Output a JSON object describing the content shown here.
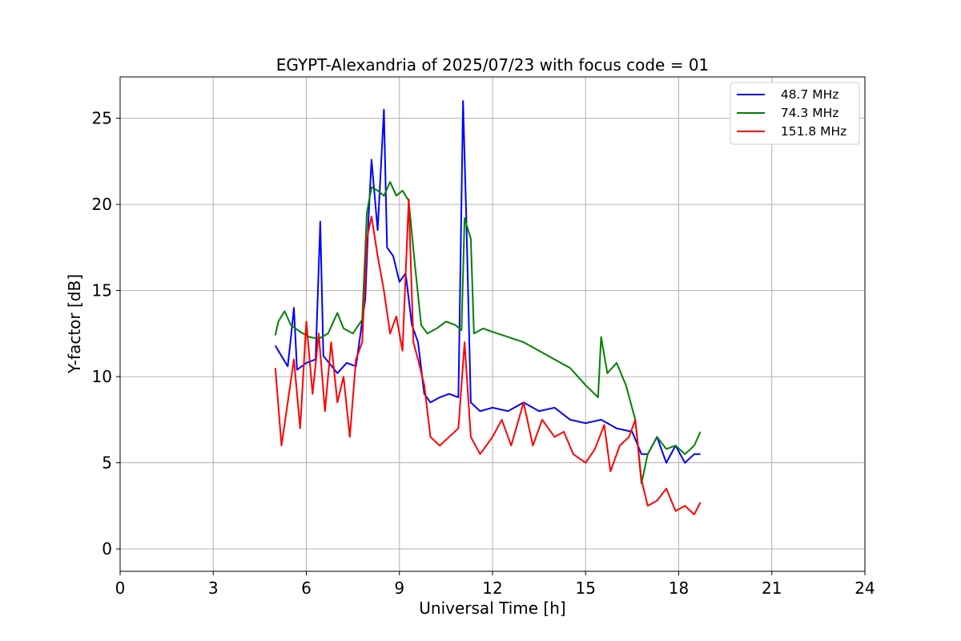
{
  "chart_data": {
    "type": "line",
    "title": "EGYPT-Alexandria of 2025/07/23 with focus code = 01",
    "xlabel": "Universal Time [h]",
    "ylabel": "Y-factor [dB]",
    "xlim": [
      0,
      24
    ],
    "ylim": [
      -1.3,
      27.4
    ],
    "xticks": [
      0,
      3,
      6,
      9,
      12,
      15,
      18,
      21,
      24
    ],
    "yticks": [
      0,
      5,
      10,
      15,
      20,
      25
    ],
    "grid": true,
    "legend_position": "top-right",
    "series": [
      {
        "name": "  48.7 MHz",
        "color": "#0000ff",
        "points": [
          [
            5.0,
            11.8
          ],
          [
            5.2,
            11.2
          ],
          [
            5.4,
            10.6
          ],
          [
            5.5,
            12.2
          ],
          [
            5.6,
            14.0
          ],
          [
            5.7,
            10.4
          ],
          [
            6.0,
            10.8
          ],
          [
            6.3,
            11.0
          ],
          [
            6.45,
            19.0
          ],
          [
            6.55,
            11.2
          ],
          [
            7.0,
            10.2
          ],
          [
            7.3,
            10.8
          ],
          [
            7.6,
            10.6
          ],
          [
            7.9,
            14.5
          ],
          [
            8.0,
            19.0
          ],
          [
            8.1,
            22.6
          ],
          [
            8.3,
            18.5
          ],
          [
            8.5,
            25.5
          ],
          [
            8.6,
            17.5
          ],
          [
            8.8,
            17.0
          ],
          [
            9.0,
            15.5
          ],
          [
            9.2,
            16.0
          ],
          [
            9.4,
            13.0
          ],
          [
            9.6,
            12.0
          ],
          [
            9.8,
            9.0
          ],
          [
            10.0,
            8.5
          ],
          [
            10.3,
            8.8
          ],
          [
            10.6,
            9.0
          ],
          [
            10.9,
            8.8
          ],
          [
            11.05,
            26.0
          ],
          [
            11.15,
            19.5
          ],
          [
            11.3,
            8.5
          ],
          [
            11.6,
            8.0
          ],
          [
            12.0,
            8.2
          ],
          [
            12.5,
            8.0
          ],
          [
            13.0,
            8.5
          ],
          [
            13.5,
            8.0
          ],
          [
            14.0,
            8.2
          ],
          [
            14.5,
            7.5
          ],
          [
            15.0,
            7.3
          ],
          [
            15.5,
            7.5
          ],
          [
            16.0,
            7.0
          ],
          [
            16.5,
            6.8
          ],
          [
            16.8,
            5.5
          ],
          [
            17.0,
            5.5
          ],
          [
            17.3,
            6.5
          ],
          [
            17.6,
            5.0
          ],
          [
            17.9,
            6.0
          ],
          [
            18.2,
            5.0
          ],
          [
            18.5,
            5.5
          ],
          [
            18.7,
            5.5
          ]
        ]
      },
      {
        "name": "  74.3 MHz",
        "color": "#008000",
        "points": [
          [
            5.0,
            12.4
          ],
          [
            5.1,
            13.2
          ],
          [
            5.3,
            13.8
          ],
          [
            5.5,
            13.0
          ],
          [
            5.8,
            12.6
          ],
          [
            6.1,
            12.3
          ],
          [
            6.4,
            12.2
          ],
          [
            6.7,
            12.5
          ],
          [
            7.0,
            13.7
          ],
          [
            7.2,
            12.8
          ],
          [
            7.5,
            12.5
          ],
          [
            7.8,
            13.3
          ],
          [
            7.95,
            19.5
          ],
          [
            8.1,
            21.0
          ],
          [
            8.3,
            20.8
          ],
          [
            8.5,
            20.5
          ],
          [
            8.7,
            21.3
          ],
          [
            8.9,
            20.5
          ],
          [
            9.1,
            20.8
          ],
          [
            9.3,
            20.2
          ],
          [
            9.5,
            16.5
          ],
          [
            9.7,
            13.0
          ],
          [
            9.9,
            12.5
          ],
          [
            10.2,
            12.8
          ],
          [
            10.5,
            13.2
          ],
          [
            10.8,
            13.0
          ],
          [
            11.0,
            12.7
          ],
          [
            11.1,
            19.2
          ],
          [
            11.3,
            18.0
          ],
          [
            11.4,
            12.5
          ],
          [
            11.7,
            12.8
          ],
          [
            12.0,
            12.6
          ],
          [
            12.5,
            12.3
          ],
          [
            13.0,
            12.0
          ],
          [
            13.5,
            11.5
          ],
          [
            14.0,
            11.0
          ],
          [
            14.5,
            10.5
          ],
          [
            15.0,
            9.5
          ],
          [
            15.4,
            8.8
          ],
          [
            15.5,
            12.3
          ],
          [
            15.7,
            10.2
          ],
          [
            16.0,
            10.8
          ],
          [
            16.3,
            9.5
          ],
          [
            16.6,
            7.5
          ],
          [
            16.8,
            3.8
          ],
          [
            17.0,
            5.5
          ],
          [
            17.3,
            6.5
          ],
          [
            17.6,
            5.8
          ],
          [
            17.9,
            6.0
          ],
          [
            18.2,
            5.5
          ],
          [
            18.5,
            6.0
          ],
          [
            18.7,
            6.8
          ]
        ]
      },
      {
        "name": "  151.8 MHz",
        "color": "#ff0000",
        "points": [
          [
            5.0,
            10.5
          ],
          [
            5.2,
            6.0
          ],
          [
            5.4,
            8.5
          ],
          [
            5.6,
            11.0
          ],
          [
            5.8,
            7.0
          ],
          [
            6.0,
            13.2
          ],
          [
            6.2,
            9.0
          ],
          [
            6.4,
            12.5
          ],
          [
            6.6,
            8.0
          ],
          [
            6.8,
            12.0
          ],
          [
            7.0,
            8.5
          ],
          [
            7.2,
            10.0
          ],
          [
            7.4,
            6.5
          ],
          [
            7.6,
            11.0
          ],
          [
            7.8,
            12.0
          ],
          [
            7.95,
            18.0
          ],
          [
            8.1,
            19.3
          ],
          [
            8.3,
            17.0
          ],
          [
            8.5,
            15.0
          ],
          [
            8.7,
            12.5
          ],
          [
            8.9,
            13.5
          ],
          [
            9.1,
            11.5
          ],
          [
            9.3,
            20.3
          ],
          [
            9.45,
            12.0
          ],
          [
            9.6,
            11.0
          ],
          [
            9.8,
            9.5
          ],
          [
            10.0,
            6.5
          ],
          [
            10.3,
            6.0
          ],
          [
            10.6,
            6.5
          ],
          [
            10.9,
            7.0
          ],
          [
            11.1,
            12.0
          ],
          [
            11.3,
            6.5
          ],
          [
            11.6,
            5.5
          ],
          [
            12.0,
            6.5
          ],
          [
            12.3,
            7.5
          ],
          [
            12.6,
            6.0
          ],
          [
            13.0,
            8.5
          ],
          [
            13.3,
            6.0
          ],
          [
            13.6,
            7.5
          ],
          [
            14.0,
            6.5
          ],
          [
            14.3,
            6.8
          ],
          [
            14.6,
            5.5
          ],
          [
            15.0,
            5.0
          ],
          [
            15.3,
            5.8
          ],
          [
            15.6,
            7.2
          ],
          [
            15.8,
            4.5
          ],
          [
            16.1,
            6.0
          ],
          [
            16.4,
            6.5
          ],
          [
            16.6,
            7.5
          ],
          [
            16.8,
            4.0
          ],
          [
            17.0,
            2.5
          ],
          [
            17.3,
            2.8
          ],
          [
            17.6,
            3.5
          ],
          [
            17.9,
            2.2
          ],
          [
            18.2,
            2.5
          ],
          [
            18.5,
            2.0
          ],
          [
            18.7,
            2.7
          ]
        ]
      }
    ]
  }
}
